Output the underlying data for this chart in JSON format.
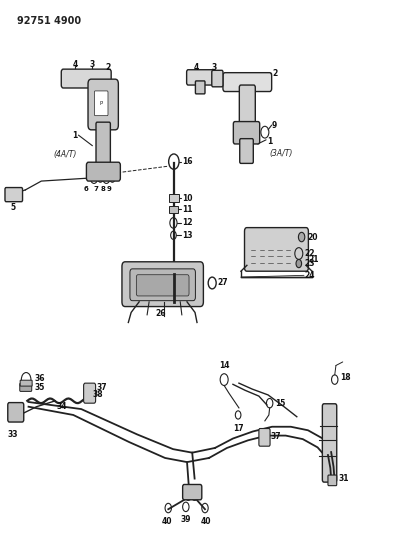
{
  "title": "92751 4900",
  "bg_color": "#ffffff",
  "line_color": "#222222",
  "fig_width": 4.02,
  "fig_height": 5.33,
  "dpi": 100,
  "label_4a": "(4A/T)",
  "label_3a": "(3A/T)"
}
